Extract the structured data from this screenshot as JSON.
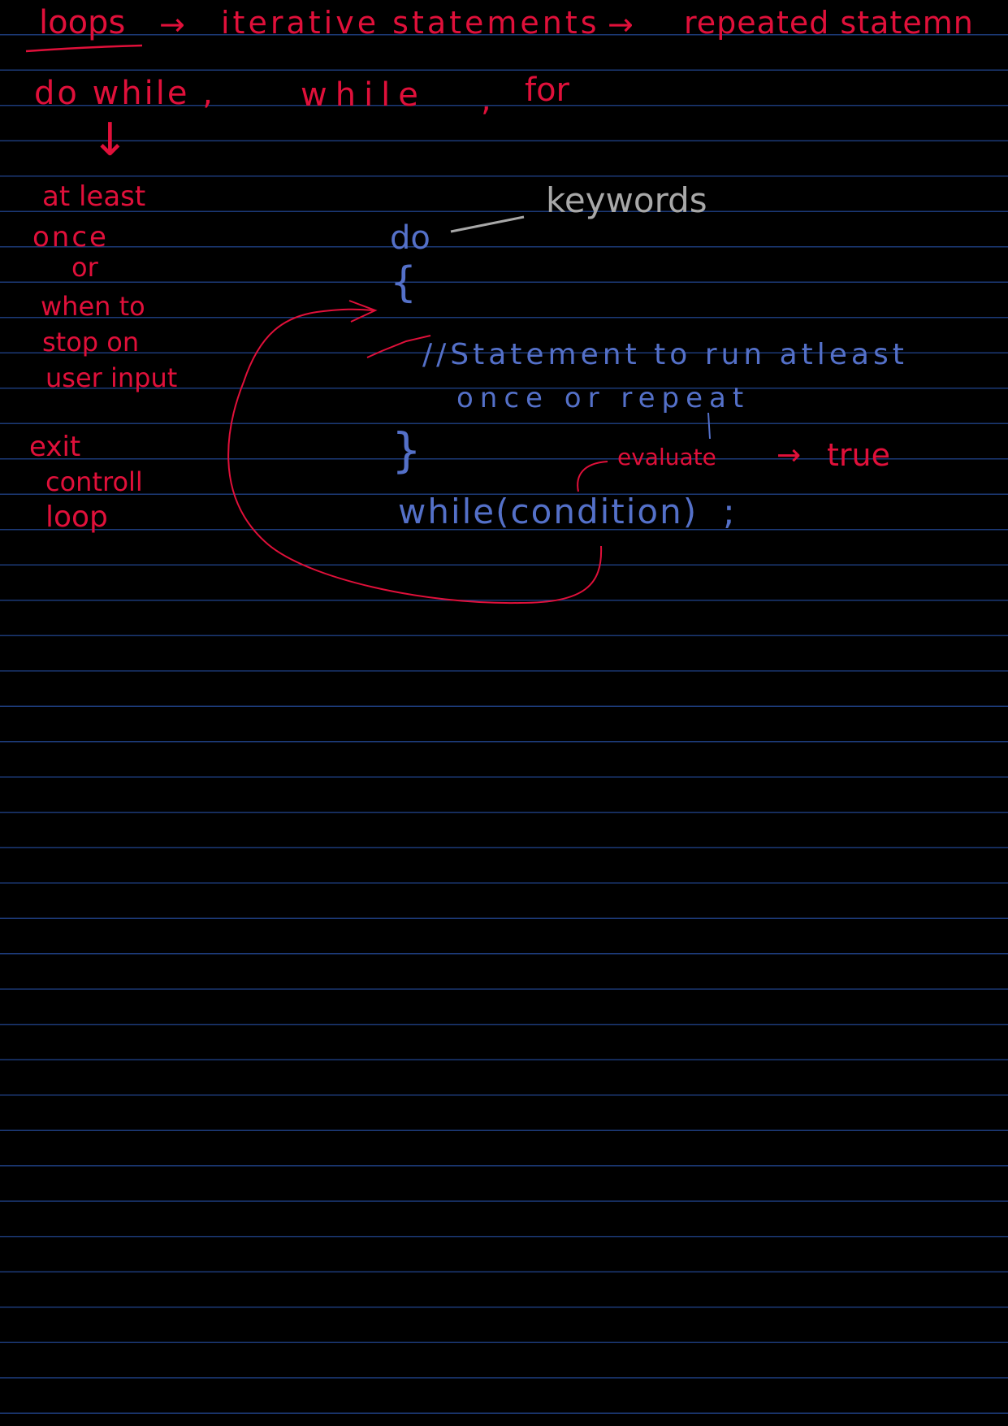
{
  "colors": {
    "background": "#000000",
    "ruled_line": "#1c3a78",
    "red_ink": "#e0103a",
    "blue_ink": "#5470c8",
    "grey_ink": "#a8a8a8"
  },
  "heading": {
    "title": "loops",
    "arrow1": "→",
    "part2": "iterative statements",
    "arrow2": "→",
    "part3": "repeated statemn"
  },
  "loop_types": {
    "item1": "do while ,",
    "item2": "while",
    "sep": ",",
    "item3": "for"
  },
  "do_while_note": {
    "arrow": "↓",
    "line1": "at least",
    "line2": "once",
    "line3": "or",
    "line4": "when to",
    "line5": "stop on",
    "line6": "user input",
    "line7": "exit",
    "line8": "controll",
    "line9": "loop"
  },
  "syntax": {
    "do": "do",
    "keywords": "keywords",
    "open_brace": "{",
    "comment_line1": "//Statement to run atleast",
    "comment_line2": "once or repeat",
    "close_brace": "}",
    "while_line": "while(condition)",
    "semicolon": ";",
    "evaluate": "evaluate",
    "arrow": "→",
    "true": "true"
  }
}
